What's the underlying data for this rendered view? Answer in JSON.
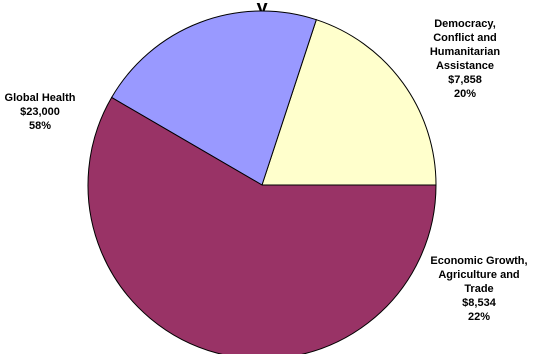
{
  "chart_data": {
    "type": "pie",
    "title_fragment": "y",
    "slices": [
      {
        "label_lines": [
          "Democracy,",
          "Conflict and",
          "Humanitarian",
          "Assistance"
        ],
        "value": 7858,
        "value_label": "$7,858",
        "percent_label": "20%",
        "color": "#FFFFCC"
      },
      {
        "label_lines": [
          "Economic Growth,",
          "Agriculture and",
          "Trade"
        ],
        "value": 8534,
        "value_label": "$8,534",
        "percent_label": "22%",
        "color": "#9999FF"
      },
      {
        "label_lines": [
          "Global Health"
        ],
        "value": 23000,
        "value_label": "$23,000",
        "percent_label": "58%",
        "color": "#993366"
      }
    ]
  }
}
